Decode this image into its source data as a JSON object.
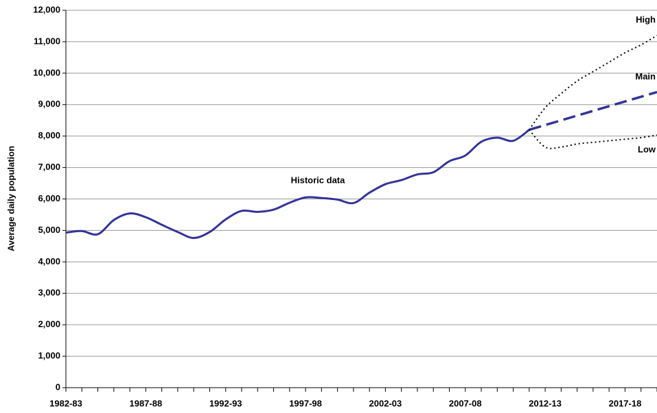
{
  "chart_data": {
    "type": "line",
    "y_label": "Average daily population",
    "annotation": "Historic data",
    "categories": [
      "1982-83",
      null,
      null,
      null,
      null,
      "1987-88",
      null,
      null,
      null,
      null,
      "1992-93",
      null,
      null,
      null,
      null,
      "1997-98",
      null,
      null,
      null,
      null,
      "2002-03",
      null,
      null,
      null,
      null,
      "2007-08",
      null,
      null,
      null,
      null,
      "2012-13",
      null,
      null,
      null,
      null,
      "2017-18",
      null,
      null
    ],
    "series": [
      {
        "name": null,
        "color": "#333399",
        "dash": "solid",
        "values": [
          4930,
          4980,
          4880,
          5330,
          5540,
          5420,
          5180,
          4950,
          4760,
          4950,
          5350,
          5620,
          5590,
          5660,
          5880,
          6050,
          6030,
          5980,
          5870,
          6200,
          6470,
          6600,
          6780,
          6850,
          7200,
          7380,
          7820,
          7950,
          7850,
          8200,
          null,
          null,
          null,
          null,
          null,
          null,
          null,
          null
        ]
      },
      {
        "name": "High",
        "color": "#000000",
        "dash": "dotted",
        "values": [
          null,
          null,
          null,
          null,
          null,
          null,
          null,
          null,
          null,
          null,
          null,
          null,
          null,
          null,
          null,
          null,
          null,
          null,
          null,
          null,
          null,
          null,
          null,
          null,
          null,
          null,
          null,
          null,
          null,
          8200,
          8900,
          9350,
          9750,
          10050,
          10350,
          10650,
          10900,
          11200
        ]
      },
      {
        "name": "Main",
        "color": "#333399",
        "dash": "dashed",
        "values": [
          null,
          null,
          null,
          null,
          null,
          null,
          null,
          null,
          null,
          null,
          null,
          null,
          null,
          null,
          null,
          null,
          null,
          null,
          null,
          null,
          null,
          null,
          null,
          null,
          null,
          null,
          null,
          null,
          null,
          8200,
          8350,
          8500,
          8650,
          8800,
          8950,
          9100,
          9250,
          9400
        ]
      },
      {
        "name": "Low",
        "color": "#000000",
        "dash": "dotted",
        "values": [
          null,
          null,
          null,
          null,
          null,
          null,
          null,
          null,
          null,
          null,
          null,
          null,
          null,
          null,
          null,
          null,
          null,
          null,
          null,
          null,
          null,
          null,
          null,
          null,
          null,
          null,
          null,
          null,
          null,
          8200,
          7650,
          7650,
          7750,
          7800,
          7850,
          7900,
          7950,
          8030
        ]
      }
    ],
    "ylim": [
      0,
      12000
    ],
    "yticks": [
      {
        "value": 0,
        "label": "0"
      },
      {
        "value": 1000,
        "label": "1,000"
      },
      {
        "value": 2000,
        "label": "2,000"
      },
      {
        "value": 3000,
        "label": "3,000"
      },
      {
        "value": 4000,
        "label": "4,000"
      },
      {
        "value": 5000,
        "label": "5,000"
      },
      {
        "value": 6000,
        "label": "6,000"
      },
      {
        "value": 7000,
        "label": "7,000"
      },
      {
        "value": 8000,
        "label": "8,000"
      },
      {
        "value": 9000,
        "label": "9,000"
      },
      {
        "value": 10000,
        "label": "10,000"
      },
      {
        "value": 11000,
        "label": "11,000"
      },
      {
        "value": 12000,
        "label": "12,000"
      }
    ],
    "grid": true
  }
}
